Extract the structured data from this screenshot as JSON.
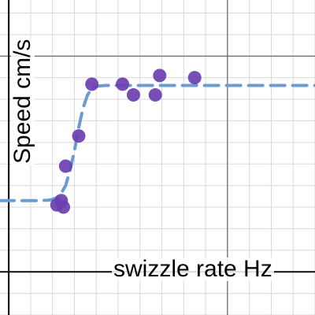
{
  "chart_data": {
    "type": "scatter",
    "xlabel": "swizzle rate Hz",
    "ylabel": "Speed cm/s",
    "grid": true,
    "xlim": [
      -0.2,
      7
    ],
    "ylim": [
      -1,
      6.3
    ],
    "series": [
      {
        "kind": "points",
        "color": "#6a3fb0",
        "x": [
          1.1,
          1.2,
          1.25,
          1.3,
          1.6,
          1.9,
          2.6,
          2.85,
          3.35,
          3.45,
          4.25
        ],
        "y": [
          1.55,
          1.65,
          1.5,
          2.45,
          3.15,
          4.35,
          4.35,
          4.1,
          4.1,
          4.55,
          4.5
        ]
      },
      {
        "kind": "dashed-curve",
        "color": "#6b9bd1",
        "x": [
          -0.2,
          0.2,
          0.6,
          0.9,
          1.0,
          1.1,
          1.2,
          1.3,
          1.4,
          1.5,
          1.6,
          1.7,
          1.8,
          1.9,
          2.0,
          2.2,
          2.5,
          3.0,
          4.0,
          5.0,
          6.0,
          7.0
        ],
        "y": [
          1.65,
          1.65,
          1.65,
          1.66,
          1.68,
          1.72,
          1.82,
          2.0,
          2.35,
          2.8,
          3.35,
          3.8,
          4.1,
          4.25,
          4.3,
          4.32,
          4.32,
          4.32,
          4.32,
          4.32,
          4.32,
          4.32
        ]
      }
    ]
  },
  "colors": {
    "grid": "#d9d9d9",
    "axis": "#1a1a1a",
    "background": "#ffffff"
  }
}
